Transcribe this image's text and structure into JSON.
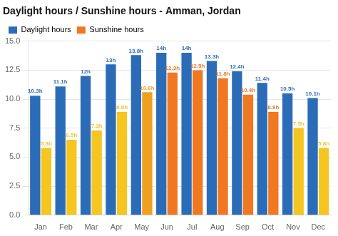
{
  "chart_data": {
    "type": "bar",
    "title": "Daylight hours / Sunshine hours - Amman, Jordan",
    "categories": [
      "Jan",
      "Feb",
      "Mar",
      "Apr",
      "May",
      "Jun",
      "Jul",
      "Aug",
      "Sep",
      "Oct",
      "Nov",
      "Dec"
    ],
    "series": [
      {
        "name": "Daylight hours",
        "color": "#2b6cb8",
        "values": [
          10.3,
          11.1,
          12.0,
          13.0,
          13.8,
          14.0,
          14.0,
          13.3,
          12.4,
          11.4,
          10.5,
          10.1
        ],
        "value_labels": [
          "10.3h",
          "11.1h",
          "12h",
          "13h",
          "13.8h",
          "14h",
          "14h",
          "13.3h",
          "12.4h",
          "11.4h",
          "10.5h",
          "10.1h"
        ]
      },
      {
        "name": "Sunshine hours",
        "color": "#f07820",
        "colors": [
          "#f5c520",
          "#f5c520",
          "#f5c520",
          "#f5c520",
          "#f0a020",
          "#f07820",
          "#f07820",
          "#f07820",
          "#f07820",
          "#f07820",
          "#f5c520",
          "#f5c520"
        ],
        "values": [
          5.8,
          6.5,
          7.3,
          8.9,
          10.6,
          12.3,
          12.5,
          11.8,
          10.4,
          8.9,
          7.5,
          5.8
        ],
        "value_labels": [
          "5.8h",
          "6.5h",
          "7.3h",
          "8.9h",
          "10.6h",
          "12.3h",
          "12.5h",
          "11.8h",
          "10.4h",
          "8.9h",
          "7.5h",
          "5.8h"
        ]
      }
    ],
    "ylim": [
      0,
      15.0
    ],
    "yticks": [
      {
        "value": 0,
        "label": "0.0"
      },
      2.5,
      {
        "value": 5,
        "label": "5.0"
      },
      {
        "value": 7.5,
        "label": "7.5"
      },
      {
        "value": 10,
        "label": "10.0"
      },
      12.5,
      {
        "value": 15,
        "label": "15.0"
      }
    ],
    "grid": true,
    "legend": "upper left",
    "data_labels": true
  }
}
